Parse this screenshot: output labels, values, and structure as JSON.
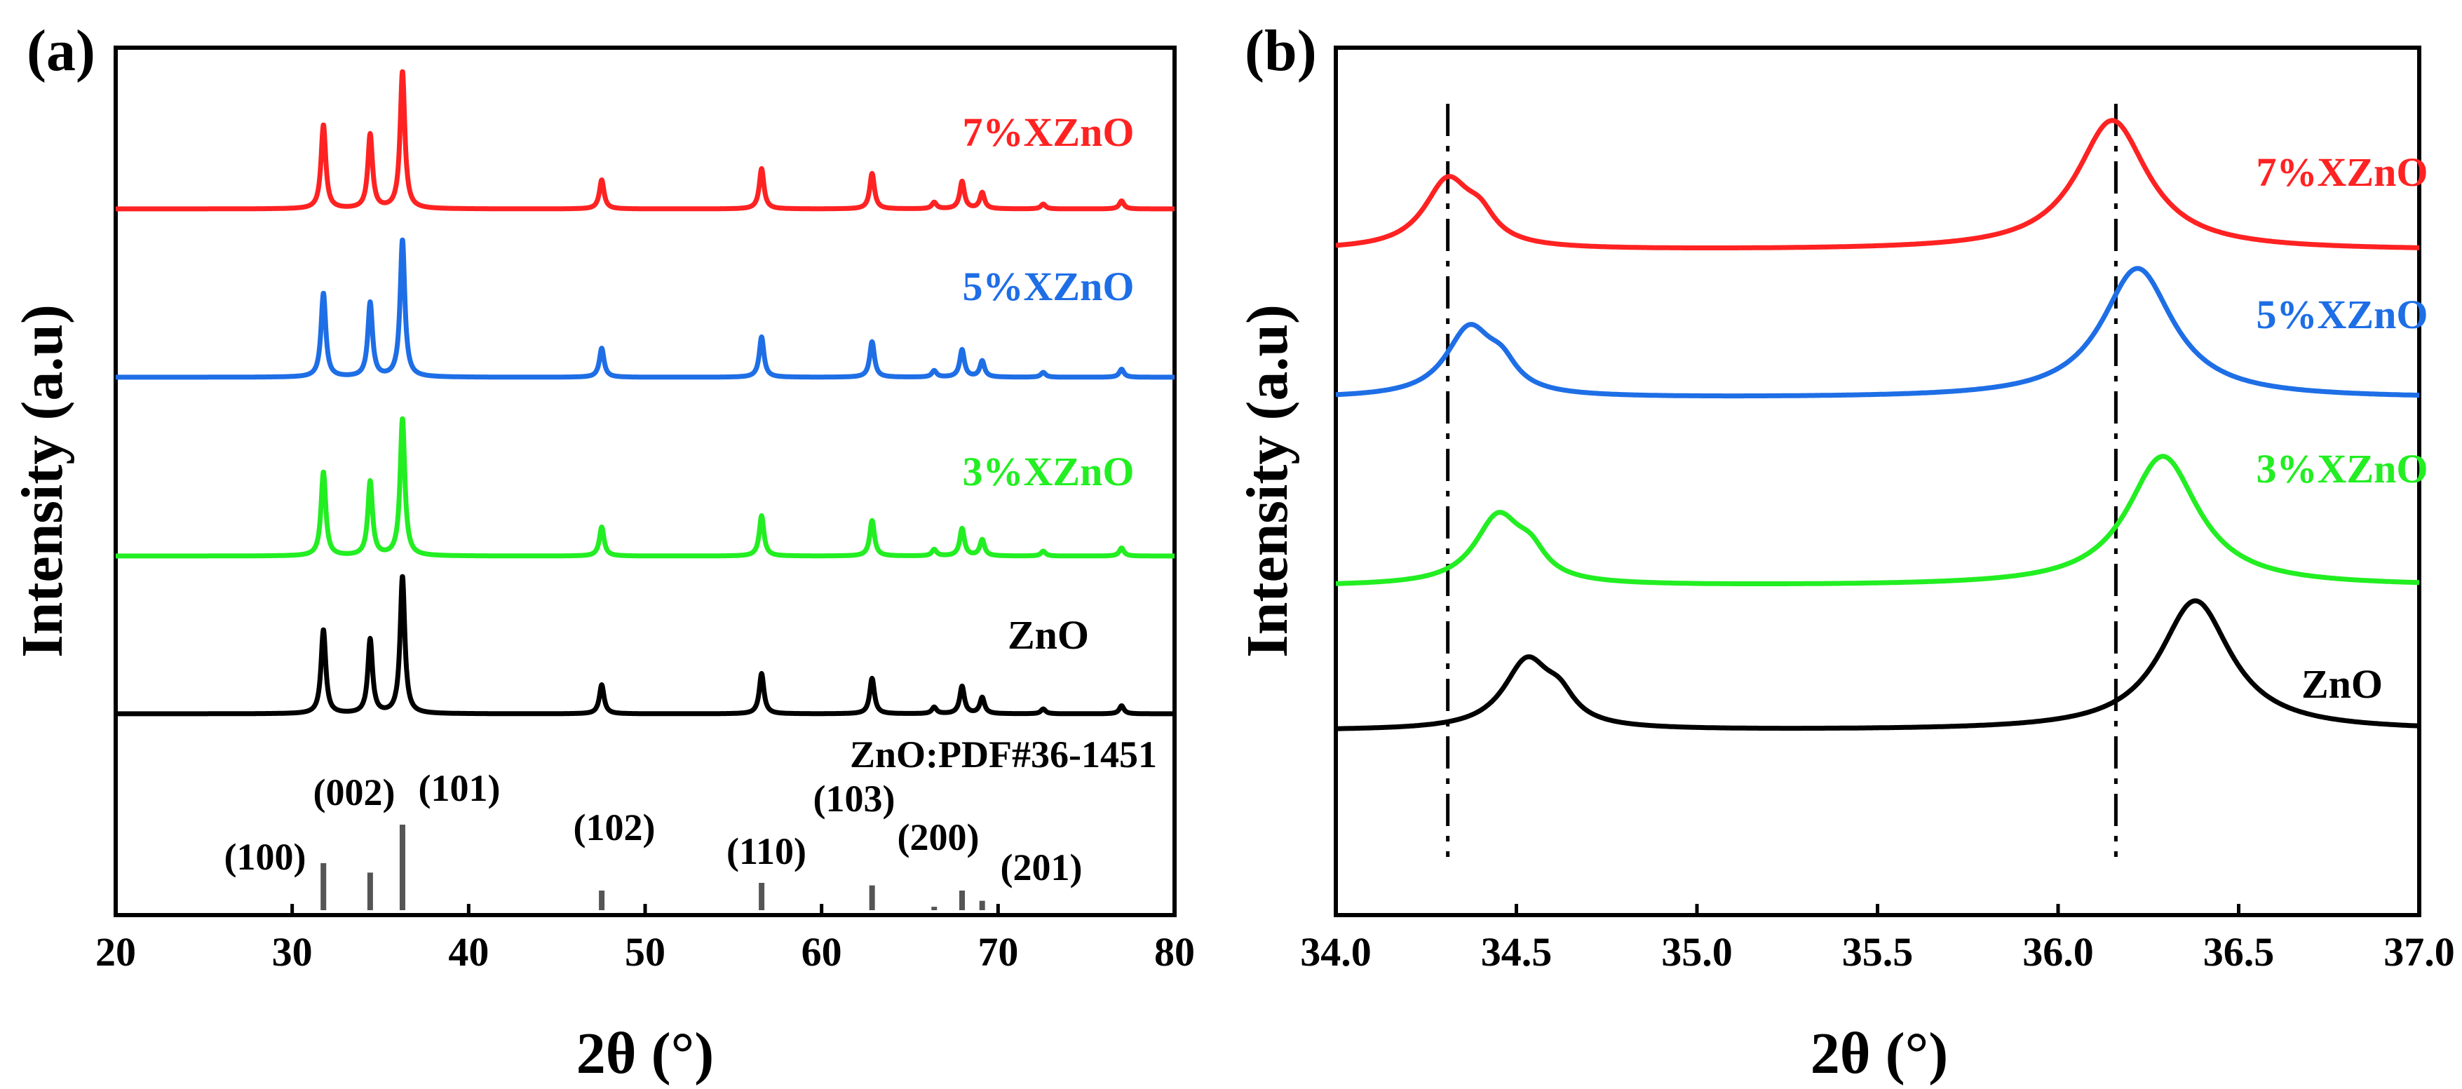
{
  "chart_data": [
    {
      "type": "line",
      "panel_label": "(a)",
      "xlabel": "2θ (°)",
      "ylabel": "Intensity (a.u)",
      "xlim": [
        20,
        80
      ],
      "x_ticks": [
        "20",
        "30",
        "40",
        "50",
        "60",
        "70",
        "80"
      ],
      "peak_positions": [
        31.77,
        34.42,
        36.25,
        47.54,
        56.6,
        62.86,
        66.38,
        67.96,
        69.1,
        72.56,
        77.0
      ],
      "series": [
        {
          "name": "ZnO",
          "color": "#000000",
          "baseline": 0,
          "peak_heights": [
            0.52,
            0.46,
            0.85,
            0.18,
            0.25,
            0.22,
            0.04,
            0.17,
            0.1,
            0.03,
            0.05
          ]
        },
        {
          "name": "3%XZnO",
          "color": "#22ee22",
          "baseline": 1,
          "peak_heights": [
            0.52,
            0.46,
            0.85,
            0.18,
            0.25,
            0.22,
            0.04,
            0.17,
            0.1,
            0.03,
            0.05
          ]
        },
        {
          "name": "5%XZnO",
          "color": "#1e6ee6",
          "baseline": 2,
          "peak_heights": [
            0.52,
            0.46,
            0.85,
            0.18,
            0.25,
            0.22,
            0.04,
            0.17,
            0.1,
            0.03,
            0.05
          ]
        },
        {
          "name": "7%XZnO",
          "color": "#ff2222",
          "baseline": 3,
          "peak_heights": [
            0.52,
            0.46,
            0.85,
            0.18,
            0.25,
            0.22,
            0.04,
            0.17,
            0.1,
            0.03,
            0.05
          ]
        }
      ],
      "reference": {
        "label": "ZnO:PDF#36-1451",
        "sticks": [
          {
            "x": 31.77,
            "rel": 0.55,
            "hkl": "(100)"
          },
          {
            "x": 34.42,
            "rel": 0.44,
            "hkl": "(002)"
          },
          {
            "x": 36.25,
            "rel": 1.0,
            "hkl": "(101)"
          },
          {
            "x": 47.54,
            "rel": 0.23,
            "hkl": "(102)"
          },
          {
            "x": 56.6,
            "rel": 0.32,
            "hkl": "(110)"
          },
          {
            "x": 62.86,
            "rel": 0.29,
            "hkl": "(103)"
          },
          {
            "x": 66.38,
            "rel": 0.04,
            "hkl": ""
          },
          {
            "x": 67.96,
            "rel": 0.23,
            "hkl": "(200)"
          },
          {
            "x": 69.1,
            "rel": 0.11,
            "hkl": "(201)"
          }
        ]
      }
    },
    {
      "type": "line",
      "panel_label": "(b)",
      "xlabel": "2θ (°)",
      "ylabel": "Intensity (a.u)",
      "xlim": [
        34.0,
        37.0
      ],
      "x_ticks": [
        "34.0",
        "34.5",
        "35.0",
        "35.5",
        "36.0",
        "36.5",
        "37.0"
      ],
      "reference_lines": [
        34.31,
        36.16
      ],
      "series": [
        {
          "name": "ZnO",
          "color": "#000000",
          "peak1": 34.53,
          "peak2": 36.38
        },
        {
          "name": "3%XZnO",
          "color": "#22ee22",
          "peak1": 34.45,
          "peak2": 36.29
        },
        {
          "name": "5%XZnO",
          "color": "#1e6ee6",
          "peak1": 34.37,
          "peak2": 36.22
        },
        {
          "name": "7%XZnO",
          "color": "#ff2222",
          "peak1": 34.31,
          "peak2": 36.15
        }
      ]
    }
  ]
}
